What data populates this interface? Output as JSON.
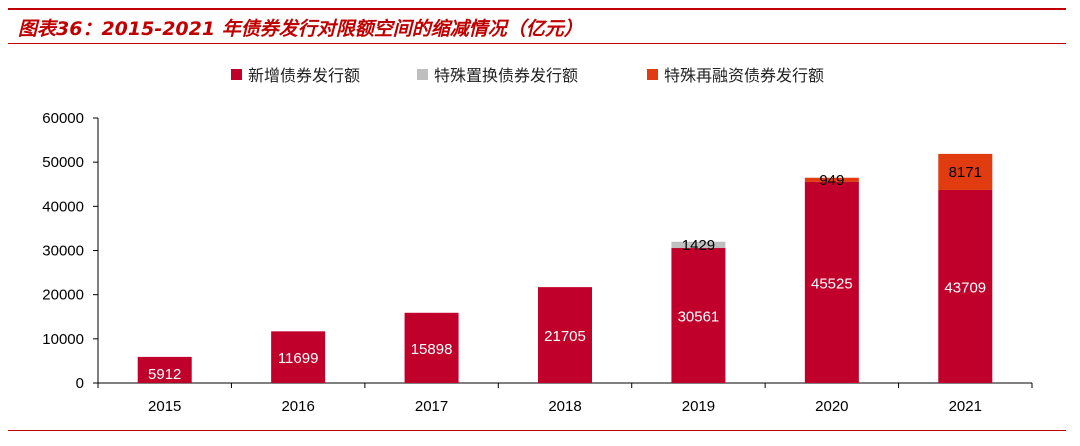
{
  "header": {
    "title": "图表36：2015-2021 年债券发行对限额空间的缩减情况（亿元）"
  },
  "chart_data": {
    "type": "bar",
    "stacked": true,
    "categories": [
      "2015",
      "2016",
      "2017",
      "2018",
      "2019",
      "2020",
      "2021"
    ],
    "series": [
      {
        "name": "新增债券发行额",
        "color": "#c0002a",
        "values": [
          5912,
          11699,
          15898,
          21705,
          30561,
          45525,
          43709
        ],
        "labels": [
          "5912",
          "11699",
          "15898",
          "21705",
          "30561",
          "45525",
          "43709"
        ]
      },
      {
        "name": "特殊置换债券发行额",
        "color": "#bfbfbf",
        "values": [
          0,
          0,
          0,
          0,
          1429,
          0,
          0
        ],
        "labels": [
          "",
          "",
          "",
          "",
          "1429",
          "",
          ""
        ]
      },
      {
        "name": "特殊再融资债券发行额",
        "color": "#e03c10",
        "values": [
          0,
          0,
          0,
          0,
          0,
          949,
          8171
        ],
        "labels": [
          "",
          "",
          "",
          "",
          "",
          "949",
          "8171"
        ]
      }
    ],
    "yticks": [
      "0",
      "10000",
      "20000",
      "30000",
      "40000",
      "50000",
      "60000"
    ],
    "ylim": [
      0,
      60000
    ],
    "title": "",
    "xlabel": "",
    "ylabel": "",
    "legend": "top"
  }
}
